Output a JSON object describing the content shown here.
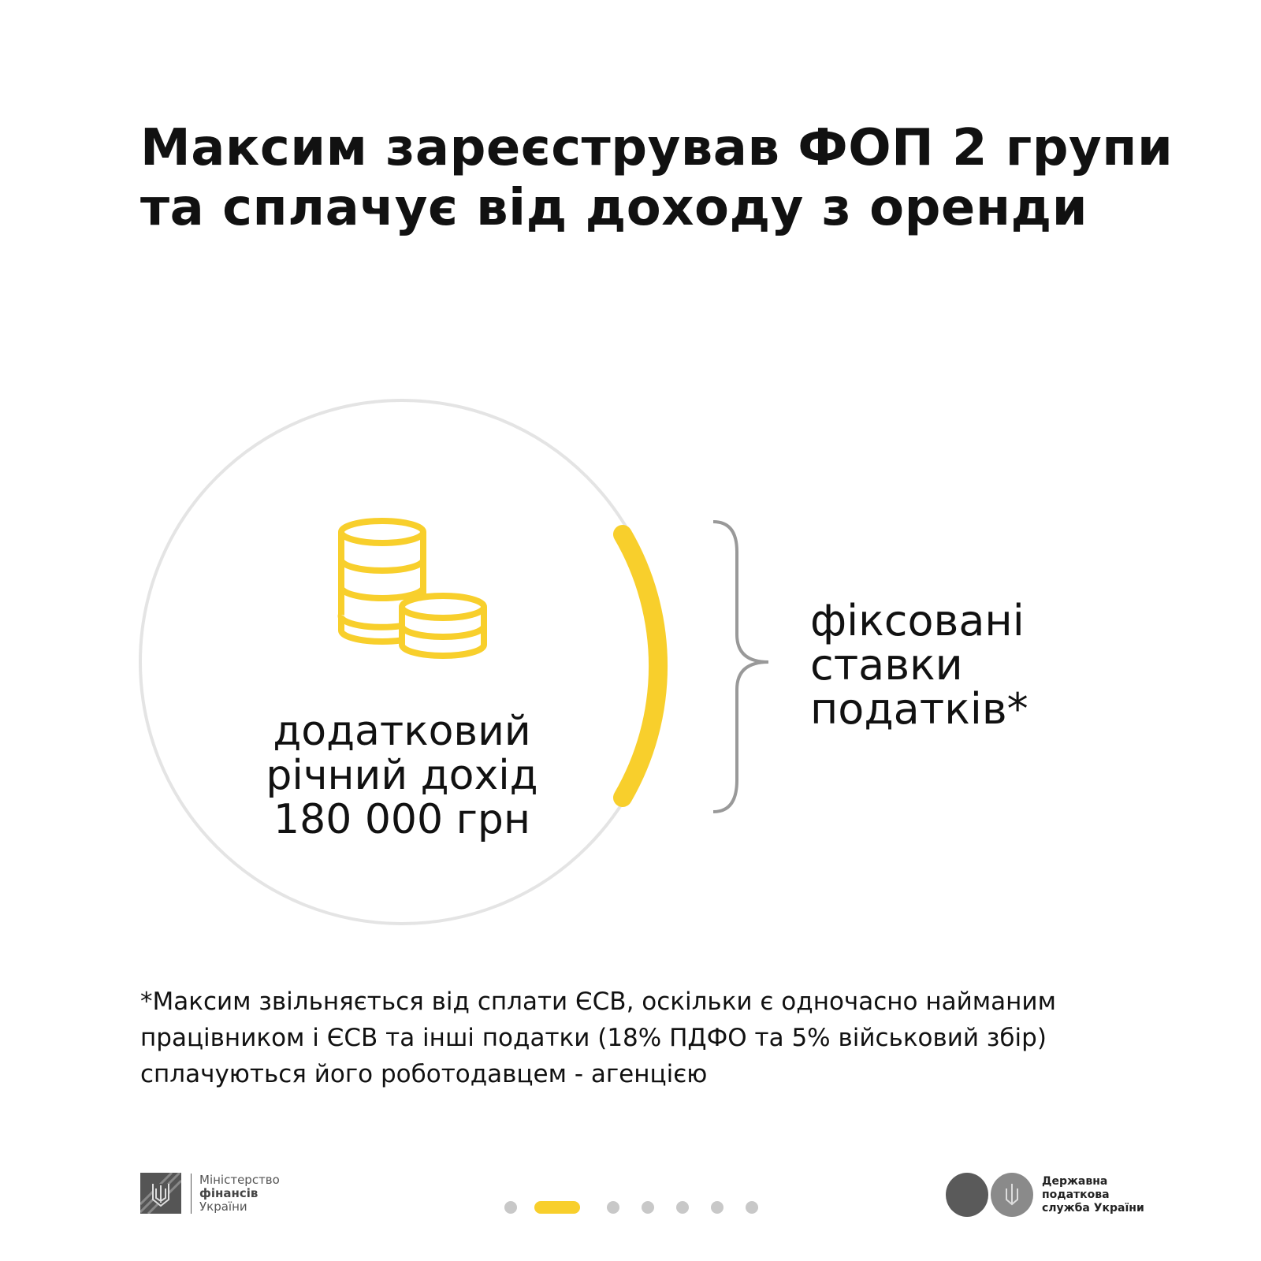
{
  "title": {
    "line1": "Максим зареєстрував ФОП 2 групи",
    "line2": "та сплачує від доходу з оренди"
  },
  "circle": {
    "icon": "coins-icon",
    "line1": "додатковий",
    "line2": "річний дохід",
    "line3": "180 000 грн"
  },
  "result": {
    "line1": "фіксовані",
    "line2": "ставки",
    "line3": "податків*"
  },
  "note": "*Максим звільняється від сплати ЄСВ, оскільки є одночасно найманим працівником і ЄСВ та інші податки (18% ПДФО та 5% військовий збір) сплачуються його роботодавцем - агенцією",
  "footer": {
    "ministry": {
      "line1": "Міністерство",
      "line2": "фінансів",
      "line3": "України"
    },
    "tax_service": {
      "line1": "Державна",
      "line2": "податкова",
      "line3": "служба України"
    },
    "pagination": {
      "total": 7,
      "active": 2
    }
  },
  "colors": {
    "accent": "#f8cf2c",
    "circle": "#e4e4e4",
    "brace": "#999999"
  }
}
